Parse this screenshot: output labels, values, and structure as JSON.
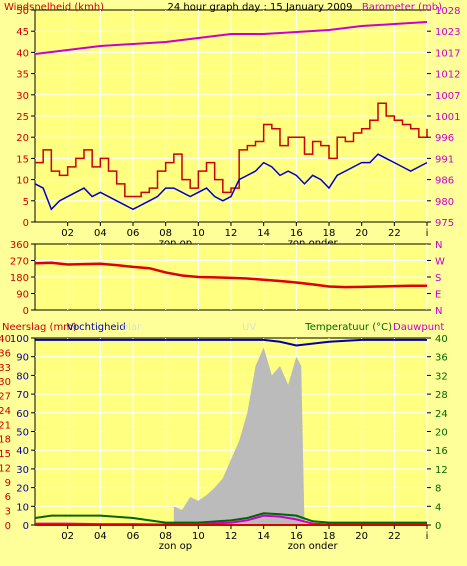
{
  "colors": {
    "background": "#ffff99",
    "plot_bg": "#ffff80",
    "grid": "#ffffff",
    "wind": "#cc0000",
    "gust": "#0000cc",
    "barometer": "#cc00cc",
    "direction": "#dd0000",
    "humidity": "#0000aa",
    "uv": "#bbbbbb",
    "temperature": "#006600",
    "dewpoint": "#cc00cc",
    "rain": "#dd0000",
    "left_axis": "#cc0000",
    "right_axis": "#cc00cc",
    "label_green": "#006600"
  },
  "chart_data": [
    {
      "id": "wind",
      "type": "line",
      "title": "24 hour graph day : 15 January 2009",
      "left_axis_label": "Windsnelheid (kmh)",
      "right_axis_label": "Barometer (mb)",
      "ylim": [
        0,
        50
      ],
      "left_ticks": [
        "0",
        "5",
        "10",
        "15",
        "20",
        "25",
        "30",
        "35",
        "40",
        "45",
        "50"
      ],
      "right_ticks": [
        "975",
        "980",
        "986",
        "991",
        "996",
        "1001",
        "1007",
        "1012",
        "1017",
        "1023",
        "1028"
      ],
      "right_ylim": [
        975,
        1028
      ],
      "x_ticks": [
        "02",
        "04",
        "06",
        "08",
        "10",
        "12",
        "14",
        "16",
        "18",
        "20",
        "22",
        "i"
      ],
      "sun_labels": {
        "sunrise": "zon op",
        "sunset": "zon onder",
        "sunrise_x": 8.6,
        "sunset_x": 17.0
      },
      "series": [
        {
          "key": "wind",
          "x": [
            0,
            0.5,
            1,
            1.5,
            2,
            2.5,
            3,
            3.5,
            4,
            4.5,
            5,
            5.5,
            6,
            6.5,
            7,
            7.5,
            8,
            8.5,
            9,
            9.5,
            10,
            10.5,
            11,
            11.5,
            12,
            12.5,
            13,
            13.5,
            14,
            14.5,
            15,
            15.5,
            16,
            16.5,
            17,
            17.5,
            18,
            18.5,
            19,
            19.5,
            20,
            20.5,
            21,
            21.5,
            22,
            22.5,
            23,
            23.5,
            24
          ],
          "values": [
            14,
            17,
            12,
            11,
            13,
            15,
            17,
            13,
            15,
            12,
            9,
            6,
            6,
            7,
            8,
            12,
            14,
            16,
            10,
            8,
            12,
            14,
            10,
            7,
            8,
            17,
            18,
            19,
            23,
            22,
            18,
            20,
            20,
            16,
            19,
            18,
            15,
            20,
            19,
            21,
            22,
            24,
            28,
            25,
            24,
            23,
            22,
            20,
            22
          ]
        },
        {
          "key": "gust",
          "x": [
            0,
            0.5,
            1,
            1.5,
            2,
            2.5,
            3,
            3.5,
            4,
            4.5,
            5,
            5.5,
            6,
            6.5,
            7,
            7.5,
            8,
            8.5,
            9,
            9.5,
            10,
            10.5,
            11,
            11.5,
            12,
            12.5,
            13,
            13.5,
            14,
            14.5,
            15,
            15.5,
            16,
            16.5,
            17,
            17.5,
            18,
            18.5,
            19,
            19.5,
            20,
            20.5,
            21,
            21.5,
            22,
            22.5,
            23,
            23.5,
            24
          ],
          "values": [
            9,
            8,
            3,
            5,
            6,
            7,
            8,
            6,
            7,
            6,
            5,
            4,
            3,
            4,
            5,
            6,
            8,
            8,
            7,
            6,
            7,
            8,
            6,
            5,
            6,
            10,
            11,
            12,
            14,
            13,
            11,
            12,
            11,
            9,
            11,
            10,
            8,
            11,
            12,
            13,
            14,
            14,
            16,
            15,
            14,
            13,
            12,
            13,
            14
          ]
        },
        {
          "key": "barometer",
          "x": [
            0,
            2,
            4,
            6,
            8,
            10,
            12,
            14,
            16,
            18,
            20,
            22,
            24
          ],
          "values": [
            1017,
            1018,
            1019,
            1019.5,
            1020,
            1021,
            1022,
            1022,
            1022.5,
            1023,
            1024,
            1024.5,
            1025
          ]
        }
      ]
    },
    {
      "id": "direction",
      "type": "line",
      "ylim": [
        0,
        360
      ],
      "left_ticks": [
        "0",
        "90",
        "180",
        "270",
        "360"
      ],
      "right_ticks": [
        "N",
        "E",
        "S",
        "W",
        "N"
      ],
      "series": [
        {
          "key": "direction",
          "x": [
            0,
            1,
            2,
            3,
            4,
            5,
            6,
            7,
            8,
            9,
            10,
            11,
            12,
            13,
            14,
            15,
            16,
            17,
            18,
            19,
            20,
            21,
            22,
            23,
            24
          ],
          "values": [
            255,
            258,
            248,
            250,
            252,
            245,
            235,
            228,
            205,
            188,
            180,
            178,
            175,
            172,
            165,
            158,
            150,
            140,
            128,
            125,
            126,
            128,
            130,
            132,
            132
          ]
        }
      ]
    },
    {
      "id": "rain_humidity_temp",
      "type": "area",
      "left_axis_label": "Neerslag (mm)",
      "humidity_label": "Vochtigheid",
      "solar_label": "olar",
      "uv_label": "UV",
      "right_axis_label": "Temperatuur (°C)",
      "dewpoint_label": "Dauwpunt",
      "ylim": [
        0,
        100
      ],
      "left_ticks": [
        "0",
        "3",
        "6",
        "9",
        "12",
        "15",
        "18",
        "21",
        "24",
        "27",
        "30",
        "33",
        "36",
        "40"
      ],
      "left_ticks2": [
        "0",
        "10",
        "20",
        "30",
        "40",
        "50",
        "60",
        "70",
        "80",
        "90",
        "100"
      ],
      "right_ticks": [
        "0",
        "4",
        "8",
        "12",
        "16",
        "20",
        "24",
        "28",
        "32",
        "36",
        "40"
      ],
      "series": [
        {
          "key": "humidity",
          "x": [
            0,
            2,
            4,
            6,
            8,
            10,
            12,
            14,
            15,
            16,
            18,
            20,
            22,
            24
          ],
          "values": [
            99,
            99,
            99,
            99,
            99,
            99,
            99,
            99,
            98,
            96,
            98,
            99,
            99,
            99
          ]
        },
        {
          "key": "uv",
          "x": [
            8.5,
            9,
            9.5,
            10,
            10.5,
            11,
            11.5,
            12,
            12.5,
            13,
            13.5,
            14,
            14.5,
            15,
            15.5,
            16,
            16.3,
            16.5
          ],
          "values": [
            10,
            8,
            15,
            13,
            16,
            20,
            25,
            35,
            45,
            60,
            85,
            95,
            80,
            85,
            75,
            90,
            85,
            0
          ]
        },
        {
          "key": "temperature",
          "x": [
            0,
            1,
            2,
            4,
            6,
            8,
            10,
            12,
            13,
            14,
            15,
            16,
            17,
            18,
            20,
            22,
            24
          ],
          "values": [
            1.5,
            2,
            2,
            2,
            1.5,
            0.5,
            0.5,
            1,
            1.5,
            2.5,
            2.3,
            2,
            0.8,
            0.5,
            0.5,
            0.5,
            0.5
          ]
        },
        {
          "key": "dewpoint",
          "x": [
            0,
            2,
            4,
            6,
            8,
            10,
            12,
            13,
            14,
            15,
            16,
            17,
            18,
            20,
            22,
            24
          ],
          "values": [
            0.3,
            0.3,
            0.2,
            0.2,
            0.1,
            0.2,
            0.5,
            1,
            2,
            1.8,
            1.2,
            0.3,
            0.1,
            0.1,
            0.1,
            0.1
          ]
        },
        {
          "key": "rain",
          "x": [
            0,
            24
          ],
          "values": [
            0,
            0
          ]
        }
      ]
    }
  ]
}
